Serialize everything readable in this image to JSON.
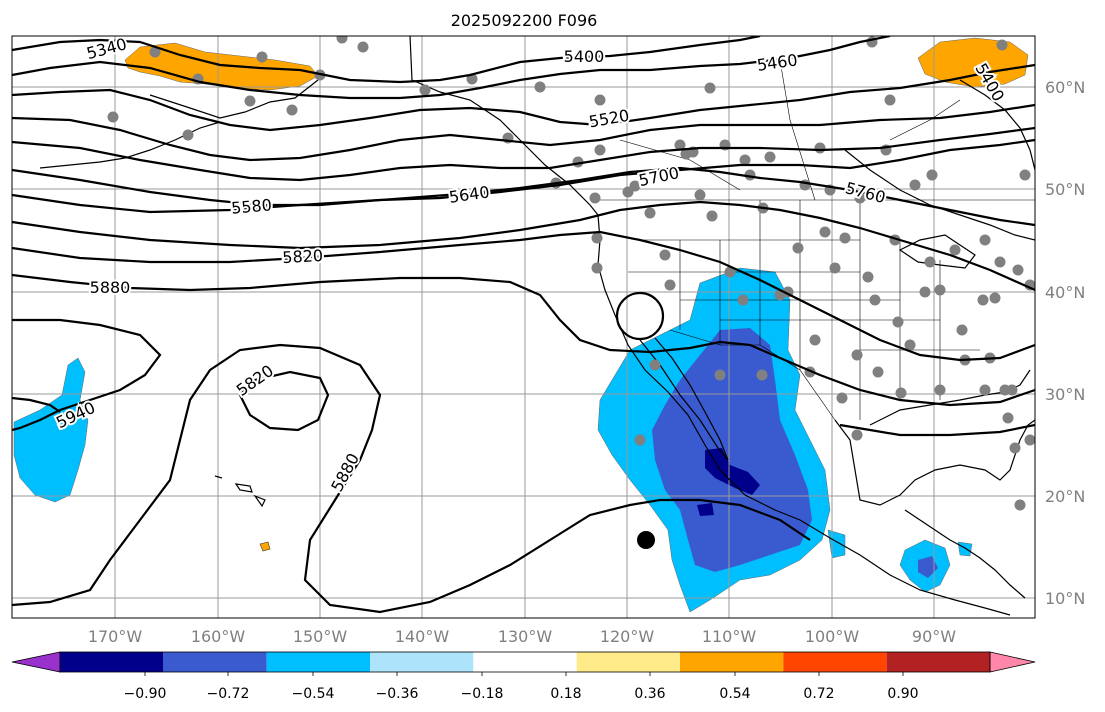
{
  "title": "2025092200 F096",
  "map": {
    "lat_ticks": [
      "60°N",
      "50°N",
      "40°N",
      "30°N",
      "20°N",
      "10°N"
    ],
    "lon_ticks": [
      "170°W",
      "160°W",
      "150°W",
      "140°W",
      "130°W",
      "120°W",
      "110°W",
      "100°W",
      "90°W"
    ],
    "contour_labels": [
      "5340",
      "5400",
      "5460",
      "5520",
      "5580",
      "5640",
      "5700",
      "5760",
      "5820",
      "5880",
      "5820",
      "5880",
      "5940",
      "5400"
    ],
    "colors": {
      "contour": "#000000",
      "grid": "#999999",
      "station_dot": "#808080",
      "coast": "#000000"
    }
  },
  "colorbar": {
    "labels": [
      "−0.90",
      "−0.72",
      "−0.54",
      "−0.36",
      "−0.18",
      "0.18",
      "0.36",
      "0.54",
      "0.72",
      "0.90"
    ],
    "colors": [
      "#9932cc",
      "#00008b",
      "#3a5bd0",
      "#00bfff",
      "#aee4fb",
      "#ffffff",
      "#ffeb8a",
      "#ffa500",
      "#ff4500",
      "#b22222",
      "#ff88aa"
    ]
  }
}
